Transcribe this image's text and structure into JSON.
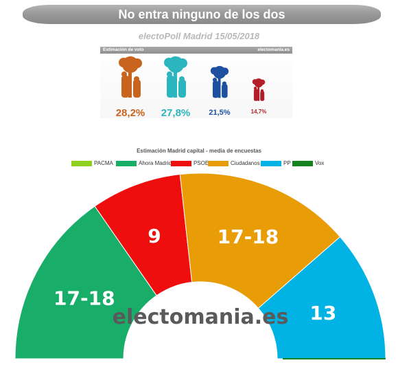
{
  "banner": "No entra ninguno de los dos",
  "subtitle": "electoPoll Madrid 15/05/2018",
  "panel": {
    "left_label": "Estimación de voto",
    "right_label": "electomania.es",
    "bears": [
      {
        "value": "28,2%",
        "color": "#c8641e"
      },
      {
        "value": "27,8%",
        "color": "#2bb5bf"
      },
      {
        "value": "21,5%",
        "color": "#1e50a0"
      },
      {
        "value": "14,7%",
        "color": "#b41e28"
      }
    ]
  },
  "chart_data": {
    "type": "pie",
    "title": "Estimación Madrid capital - media de encuestas",
    "legend": [
      {
        "name": "PACMA",
        "color": "#8ed21f"
      },
      {
        "name": "Ahora Madrid",
        "color": "#19ad6a"
      },
      {
        "name": "PSOE",
        "color": "#ee0e0e"
      },
      {
        "name": "Ciudadanos",
        "color": "#e89d06"
      },
      {
        "name": "PP",
        "color": "#00b3e4"
      },
      {
        "name": "Vox",
        "color": "#14821f"
      }
    ],
    "slices": [
      {
        "name": "PACMA",
        "label": "",
        "value": 0,
        "color": "#8ed21f"
      },
      {
        "name": "Ahora Madrid",
        "label": "17-18",
        "value": 17.5,
        "color": "#19ad6a"
      },
      {
        "name": "PSOE",
        "label": "9",
        "value": 9,
        "color": "#ee0e0e"
      },
      {
        "name": "Ciudadanos",
        "label": "17-18",
        "value": 17.5,
        "color": "#e89d06"
      },
      {
        "name": "PP",
        "label": "13",
        "value": 13,
        "color": "#00b3e4"
      },
      {
        "name": "Vox",
        "label": "",
        "value": 0,
        "color": "#14821f"
      }
    ],
    "center_text": "electomania.es"
  }
}
